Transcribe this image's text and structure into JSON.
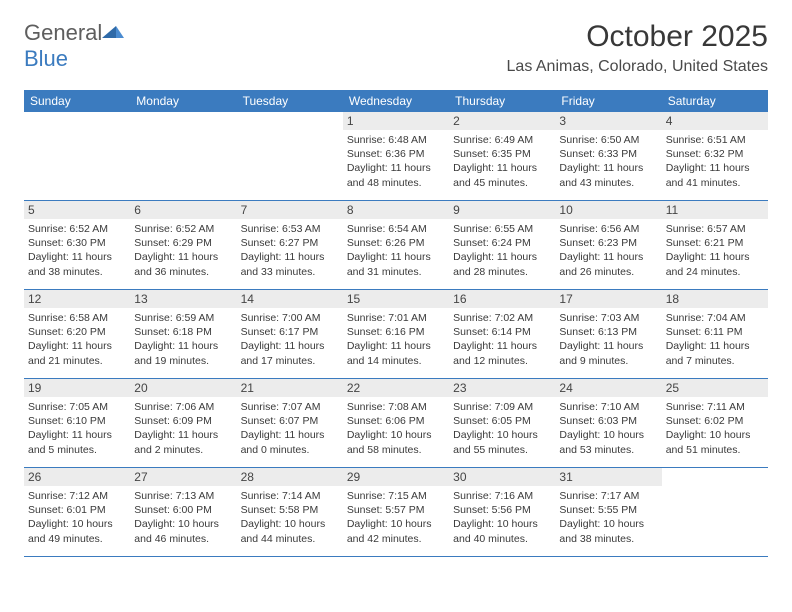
{
  "logo": {
    "word1": "General",
    "word2": "Blue"
  },
  "title": "October 2025",
  "location": "Las Animas, Colorado, United States",
  "colors": {
    "header_bg": "#3b7bbf",
    "header_text": "#ffffff",
    "daynum_bg": "#ececec",
    "text": "#383838",
    "border": "#3b7bbf"
  },
  "days_of_week": [
    "Sunday",
    "Monday",
    "Tuesday",
    "Wednesday",
    "Thursday",
    "Friday",
    "Saturday"
  ],
  "weeks": [
    [
      {
        "blank": true
      },
      {
        "blank": true
      },
      {
        "blank": true
      },
      {
        "n": "1",
        "sunrise": "6:48 AM",
        "sunset": "6:36 PM",
        "daylight": "11 hours and 48 minutes."
      },
      {
        "n": "2",
        "sunrise": "6:49 AM",
        "sunset": "6:35 PM",
        "daylight": "11 hours and 45 minutes."
      },
      {
        "n": "3",
        "sunrise": "6:50 AM",
        "sunset": "6:33 PM",
        "daylight": "11 hours and 43 minutes."
      },
      {
        "n": "4",
        "sunrise": "6:51 AM",
        "sunset": "6:32 PM",
        "daylight": "11 hours and 41 minutes."
      }
    ],
    [
      {
        "n": "5",
        "sunrise": "6:52 AM",
        "sunset": "6:30 PM",
        "daylight": "11 hours and 38 minutes."
      },
      {
        "n": "6",
        "sunrise": "6:52 AM",
        "sunset": "6:29 PM",
        "daylight": "11 hours and 36 minutes."
      },
      {
        "n": "7",
        "sunrise": "6:53 AM",
        "sunset": "6:27 PM",
        "daylight": "11 hours and 33 minutes."
      },
      {
        "n": "8",
        "sunrise": "6:54 AM",
        "sunset": "6:26 PM",
        "daylight": "11 hours and 31 minutes."
      },
      {
        "n": "9",
        "sunrise": "6:55 AM",
        "sunset": "6:24 PM",
        "daylight": "11 hours and 28 minutes."
      },
      {
        "n": "10",
        "sunrise": "6:56 AM",
        "sunset": "6:23 PM",
        "daylight": "11 hours and 26 minutes."
      },
      {
        "n": "11",
        "sunrise": "6:57 AM",
        "sunset": "6:21 PM",
        "daylight": "11 hours and 24 minutes."
      }
    ],
    [
      {
        "n": "12",
        "sunrise": "6:58 AM",
        "sunset": "6:20 PM",
        "daylight": "11 hours and 21 minutes."
      },
      {
        "n": "13",
        "sunrise": "6:59 AM",
        "sunset": "6:18 PM",
        "daylight": "11 hours and 19 minutes."
      },
      {
        "n": "14",
        "sunrise": "7:00 AM",
        "sunset": "6:17 PM",
        "daylight": "11 hours and 17 minutes."
      },
      {
        "n": "15",
        "sunrise": "7:01 AM",
        "sunset": "6:16 PM",
        "daylight": "11 hours and 14 minutes."
      },
      {
        "n": "16",
        "sunrise": "7:02 AM",
        "sunset": "6:14 PM",
        "daylight": "11 hours and 12 minutes."
      },
      {
        "n": "17",
        "sunrise": "7:03 AM",
        "sunset": "6:13 PM",
        "daylight": "11 hours and 9 minutes."
      },
      {
        "n": "18",
        "sunrise": "7:04 AM",
        "sunset": "6:11 PM",
        "daylight": "11 hours and 7 minutes."
      }
    ],
    [
      {
        "n": "19",
        "sunrise": "7:05 AM",
        "sunset": "6:10 PM",
        "daylight": "11 hours and 5 minutes."
      },
      {
        "n": "20",
        "sunrise": "7:06 AM",
        "sunset": "6:09 PM",
        "daylight": "11 hours and 2 minutes."
      },
      {
        "n": "21",
        "sunrise": "7:07 AM",
        "sunset": "6:07 PM",
        "daylight": "11 hours and 0 minutes."
      },
      {
        "n": "22",
        "sunrise": "7:08 AM",
        "sunset": "6:06 PM",
        "daylight": "10 hours and 58 minutes."
      },
      {
        "n": "23",
        "sunrise": "7:09 AM",
        "sunset": "6:05 PM",
        "daylight": "10 hours and 55 minutes."
      },
      {
        "n": "24",
        "sunrise": "7:10 AM",
        "sunset": "6:03 PM",
        "daylight": "10 hours and 53 minutes."
      },
      {
        "n": "25",
        "sunrise": "7:11 AM",
        "sunset": "6:02 PM",
        "daylight": "10 hours and 51 minutes."
      }
    ],
    [
      {
        "n": "26",
        "sunrise": "7:12 AM",
        "sunset": "6:01 PM",
        "daylight": "10 hours and 49 minutes."
      },
      {
        "n": "27",
        "sunrise": "7:13 AM",
        "sunset": "6:00 PM",
        "daylight": "10 hours and 46 minutes."
      },
      {
        "n": "28",
        "sunrise": "7:14 AM",
        "sunset": "5:58 PM",
        "daylight": "10 hours and 44 minutes."
      },
      {
        "n": "29",
        "sunrise": "7:15 AM",
        "sunset": "5:57 PM",
        "daylight": "10 hours and 42 minutes."
      },
      {
        "n": "30",
        "sunrise": "7:16 AM",
        "sunset": "5:56 PM",
        "daylight": "10 hours and 40 minutes."
      },
      {
        "n": "31",
        "sunrise": "7:17 AM",
        "sunset": "5:55 PM",
        "daylight": "10 hours and 38 minutes."
      },
      {
        "blank": true
      }
    ]
  ],
  "labels": {
    "sunrise": "Sunrise:",
    "sunset": "Sunset:",
    "daylight": "Daylight:"
  }
}
